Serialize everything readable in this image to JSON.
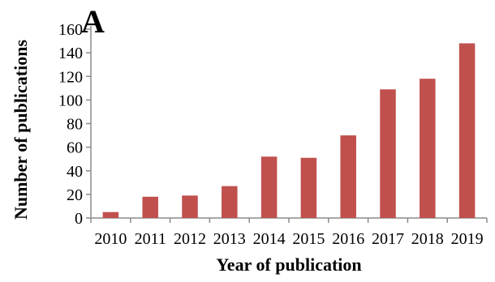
{
  "panel_label": "A",
  "colors": {
    "bar": "#c0504d",
    "axis": "#8c8c8c",
    "text": "#000000"
  },
  "chart_data": {
    "type": "bar",
    "title": "",
    "xlabel": "Year of publication",
    "ylabel": "Number of publications",
    "categories": [
      "2010",
      "2011",
      "2012",
      "2013",
      "2014",
      "2015",
      "2016",
      "2017",
      "2018",
      "2019"
    ],
    "values": [
      5,
      18,
      19,
      27,
      52,
      51,
      70,
      109,
      118,
      148
    ],
    "ylim": [
      0,
      160
    ],
    "yticks": [
      0,
      20,
      40,
      60,
      80,
      100,
      120,
      140,
      160
    ],
    "grid": false,
    "legend": "none"
  }
}
